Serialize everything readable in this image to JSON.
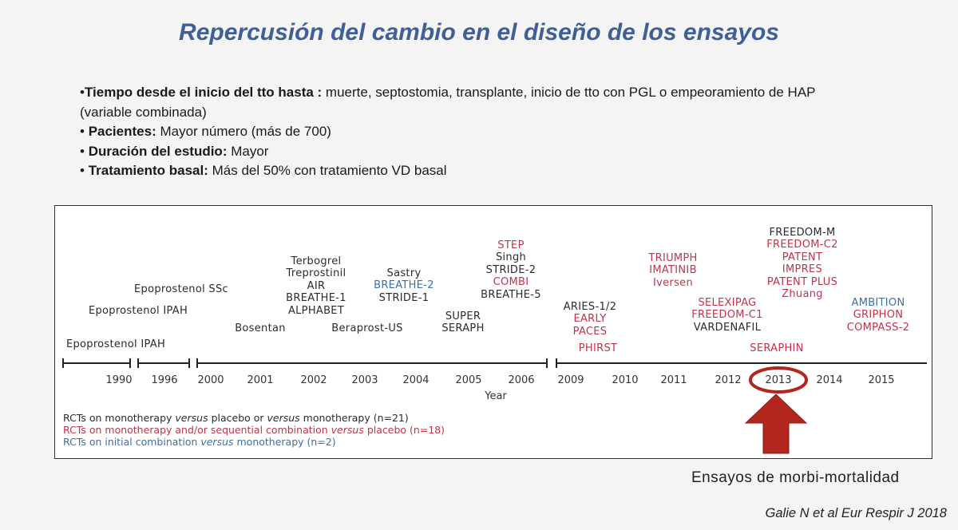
{
  "title": "Repercusión del cambio en el diseño de los ensayos",
  "bullets": [
    {
      "bold": "Tiempo desde el inicio del tto hasta :",
      "text": " muerte, septostomia, transplante, inicio de tto con PGL o  empeoramiento de HAP",
      "bullet": "•"
    },
    {
      "bold": "",
      "text": "(variable combinada)",
      "bullet": ""
    },
    {
      "bold": "Pacientes:",
      "text": " Mayor número (más de 700)",
      "bullet": "• "
    },
    {
      "bold": "Duración del estudio:",
      "text": " Mayor",
      "bullet": "• "
    },
    {
      "bold": "Tratamiento basal:",
      "text": " Más del 50% con tratamiento VD basal",
      "bullet": "• "
    }
  ],
  "timeline": {
    "years": [
      "1990",
      "1996",
      "2000",
      "2001",
      "2002",
      "2003",
      "2004",
      "2005",
      "2006",
      "2009",
      "2010",
      "2011",
      "2012",
      "2013",
      "2014",
      "2015"
    ],
    "axis_label": "Year",
    "highlight_year": "2013",
    "trials": {
      "epo_ipah_low": "Epoprostenol IPAH",
      "epo_ipah_mid": "Epoprostenol IPAH",
      "epo_ssc": "Epoprostenol SSc",
      "bosentan": "Bosentan",
      "y2002": [
        "Terbogrel",
        "Treprostinil",
        "AIR",
        "BREATHE-1",
        "ALPHABET"
      ],
      "beraprost": "Beraprost-US",
      "y2004": [
        {
          "label": "Sastry",
          "color": "blk"
        },
        {
          "label": "BREATHE-2",
          "color": "blu"
        },
        {
          "label": "STRIDE-1",
          "color": "blk"
        }
      ],
      "super_seraph": [
        "SUPER",
        "SERAPH"
      ],
      "y2006": [
        {
          "label": "STEP",
          "color": "red"
        },
        {
          "label": "Singh",
          "color": "blk"
        },
        {
          "label": "STRIDE-2",
          "color": "blk"
        },
        {
          "label": "COMBI",
          "color": "red"
        },
        {
          "label": "BREATHE-5",
          "color": "blk"
        }
      ],
      "y2009": [
        {
          "label": "ARIES-1/2",
          "color": "blk"
        },
        {
          "label": "EARLY",
          "color": "red"
        },
        {
          "label": "PACES",
          "color": "red"
        }
      ],
      "phirst": "PHIRST",
      "y2011": [
        "TRIUMPH",
        "IMATINIB",
        "Iversen"
      ],
      "y2012": [
        {
          "label": "SELEXIPAG",
          "color": "red"
        },
        {
          "label": "FREEDOM-C1",
          "color": "red"
        },
        {
          "label": "VARDENAFIL",
          "color": "blk"
        }
      ],
      "y2013": [
        {
          "label": "FREEDOM-M",
          "color": "blk"
        },
        {
          "label": "FREEDOM-C2",
          "color": "red"
        },
        {
          "label": "PATENT",
          "color": "red"
        },
        {
          "label": "IMPRES",
          "color": "red"
        },
        {
          "label": "PATENT PLUS",
          "color": "red"
        },
        {
          "label": "Zhuang",
          "color": "red"
        }
      ],
      "seraphin": "SERAPHIN",
      "y2015": [
        {
          "label": "AMBITION",
          "color": "blu"
        },
        {
          "label": "GRIPHON",
          "color": "red"
        },
        {
          "label": "COMPASS-2",
          "color": "red"
        }
      ]
    },
    "legend": {
      "line1_a": "RCTs on monotherapy ",
      "line1_i1": "versus",
      "line1_b": " placebo or ",
      "line1_i2": "versus",
      "line1_c": " monotherapy (n=21)",
      "line2_a": "RCTs on monotherapy and/or sequential combination ",
      "line2_i": "versus",
      "line2_b": " placebo (n=18)",
      "line3_a": "RCTs on initial combination ",
      "line3_i": "versus",
      "line3_b": " monotherapy (n=2)"
    },
    "colors": {
      "black": "#2b2b2b",
      "red": "#c0344a",
      "blue": "#3b6fa8",
      "arrow": "#b3261e"
    }
  },
  "caption": "Ensayos de morbi-mortalidad",
  "reference": "Galie N et al Eur Respir J 2018"
}
